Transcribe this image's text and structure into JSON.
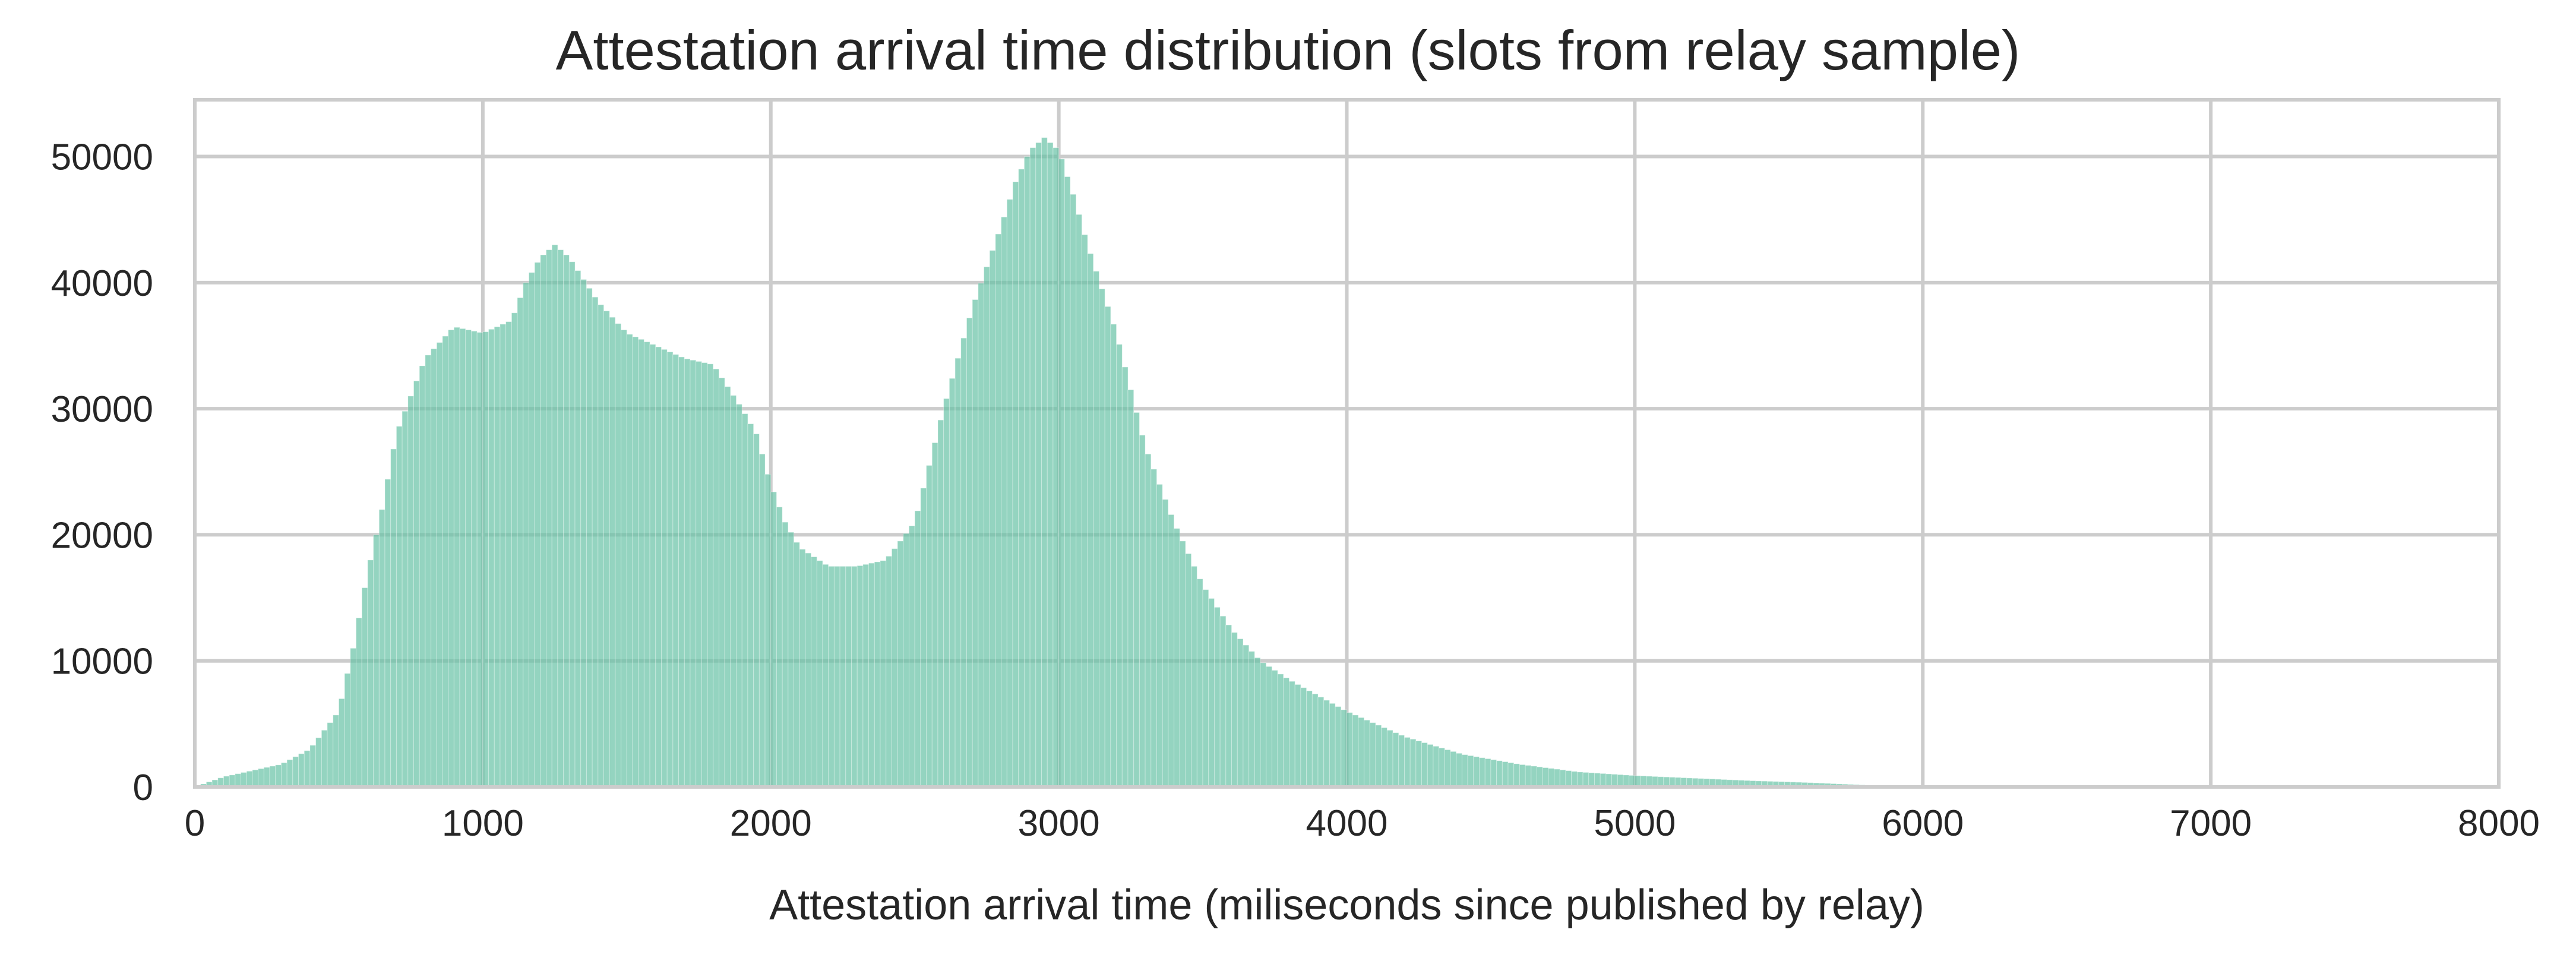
{
  "chart_data": {
    "type": "bar",
    "subtype": "histogram",
    "title": "Attestation arrival time distribution (slots from relay sample)",
    "xlabel": "Attestation arrival time (miliseconds since published by relay)",
    "ylabel": "",
    "xlim": [
      0,
      8000
    ],
    "ylim": [
      0,
      54500
    ],
    "xticks": [
      "0",
      "1000",
      "2000",
      "3000",
      "4000",
      "5000",
      "6000",
      "7000",
      "8000"
    ],
    "yticks": [
      "0",
      "10000",
      "20000",
      "30000",
      "40000",
      "50000"
    ],
    "grid": true,
    "legend": "none",
    "colors": {
      "bar": "#66c2a5",
      "grid": "#cccccc",
      "frame": "#cccccc"
    },
    "bin_width_ms": 20,
    "bins": [
      [
        100,
        800
      ],
      [
        300,
        1800
      ],
      [
        400,
        3000
      ],
      [
        500,
        6000
      ],
      [
        550,
        11000
      ],
      [
        600,
        17000
      ],
      [
        650,
        22000
      ],
      [
        700,
        28000
      ],
      [
        750,
        31000
      ],
      [
        800,
        34000
      ],
      [
        900,
        36500
      ],
      [
        1000,
        36000
      ],
      [
        1100,
        37000
      ],
      [
        1150,
        40000
      ],
      [
        1200,
        42000
      ],
      [
        1250,
        43000
      ],
      [
        1300,
        42000
      ],
      [
        1400,
        38500
      ],
      [
        1500,
        36000
      ],
      [
        1600,
        35000
      ],
      [
        1700,
        34000
      ],
      [
        1800,
        33500
      ],
      [
        1900,
        30000
      ],
      [
        1950,
        28000
      ],
      [
        2000,
        24000
      ],
      [
        2050,
        21000
      ],
      [
        2100,
        19000
      ],
      [
        2200,
        17500
      ],
      [
        2300,
        17500
      ],
      [
        2400,
        18000
      ],
      [
        2500,
        21000
      ],
      [
        2600,
        30000
      ],
      [
        2700,
        38000
      ],
      [
        2800,
        44500
      ],
      [
        2850,
        48000
      ],
      [
        2900,
        50500
      ],
      [
        2950,
        51500
      ],
      [
        3000,
        50500
      ],
      [
        3050,
        47000
      ],
      [
        3100,
        43000
      ],
      [
        3200,
        36000
      ],
      [
        3300,
        27000
      ],
      [
        3400,
        21000
      ],
      [
        3500,
        16000
      ],
      [
        3600,
        12500
      ],
      [
        3700,
        10000
      ],
      [
        3800,
        8500
      ],
      [
        4000,
        6000
      ],
      [
        4200,
        4000
      ],
      [
        4400,
        2600
      ],
      [
        4600,
        1800
      ],
      [
        4800,
        1200
      ],
      [
        5000,
        900
      ],
      [
        5200,
        700
      ],
      [
        5400,
        500
      ],
      [
        5600,
        350
      ],
      [
        5800,
        150
      ],
      [
        6000,
        50
      ],
      [
        6500,
        0
      ],
      [
        8000,
        0
      ]
    ]
  }
}
